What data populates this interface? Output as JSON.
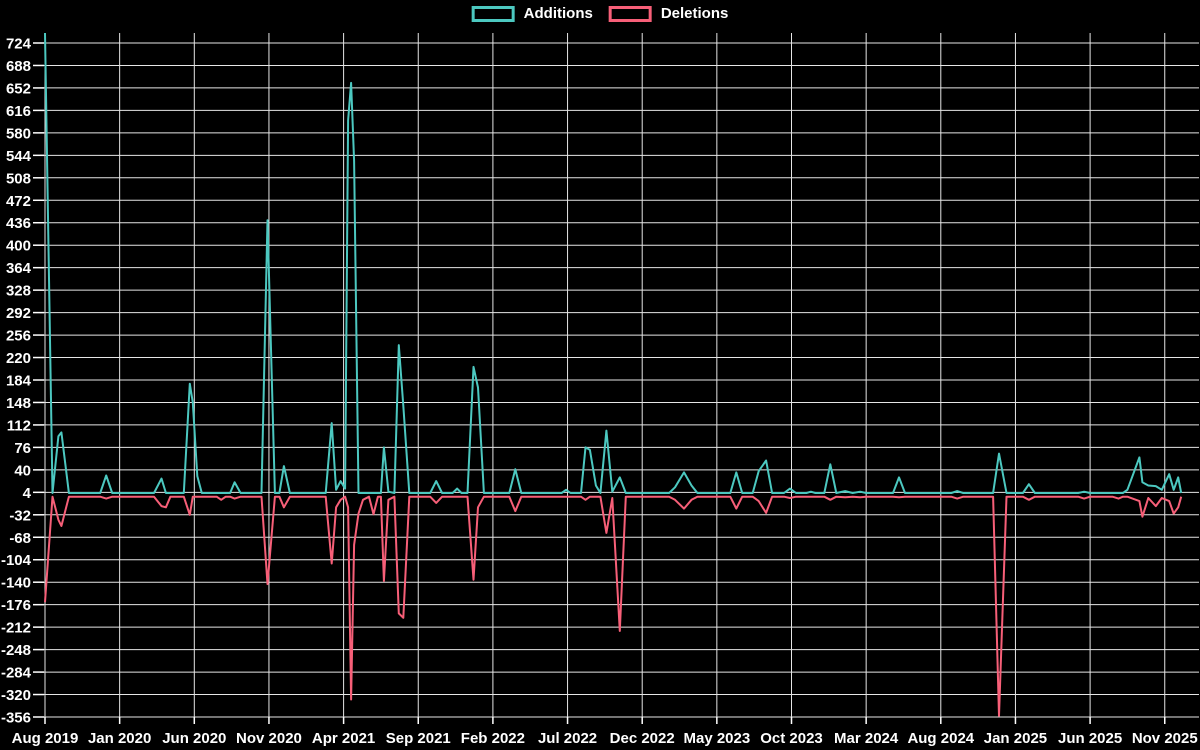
{
  "legend": {
    "additions": "Additions",
    "deletions": "Deletions"
  },
  "colors": {
    "additions": "#4cc8c0",
    "deletions": "#f75f78",
    "grid": "#e6e6e6",
    "text": "#ffffff",
    "background": "#000000"
  },
  "chart_data": {
    "type": "line",
    "title": "",
    "xlabel": "",
    "ylabel": "",
    "legend_position": "top-center",
    "grid": true,
    "background": "#000000",
    "series": [
      {
        "name": "Additions",
        "color": "#4cc8c0",
        "point_key": "additions"
      },
      {
        "name": "Deletions",
        "color": "#f75f78",
        "point_key": "deletions"
      }
    ],
    "x_axis": {
      "unit": "months since Aug 2019 (0 = Aug 2019, 1 = Sep 2019, ...)",
      "ticks": [
        {
          "t": 0,
          "label": "Aug 2019"
        },
        {
          "t": 5,
          "label": "Jan 2020"
        },
        {
          "t": 10,
          "label": "Jun 2020"
        },
        {
          "t": 15,
          "label": "Nov 2020"
        },
        {
          "t": 20,
          "label": "Apr 2021"
        },
        {
          "t": 25,
          "label": "Sep 2021"
        },
        {
          "t": 30,
          "label": "Feb 2022"
        },
        {
          "t": 35,
          "label": "Jul 2022"
        },
        {
          "t": 40,
          "label": "Dec 2022"
        },
        {
          "t": 45,
          "label": "May 2023"
        },
        {
          "t": 50,
          "label": "Oct 2023"
        },
        {
          "t": 55,
          "label": "Mar 2024"
        },
        {
          "t": 60,
          "label": "Aug 2024"
        },
        {
          "t": 65,
          "label": "Jan 2025"
        },
        {
          "t": 70,
          "label": "Jun 2025"
        },
        {
          "t": 75,
          "label": "Nov 2025"
        }
      ]
    },
    "y_axis": {
      "ticks": [
        724,
        688,
        652,
        616,
        580,
        544,
        508,
        472,
        436,
        400,
        364,
        328,
        292,
        256,
        220,
        184,
        148,
        112,
        76,
        40,
        4,
        -32,
        -68,
        -104,
        -140,
        -176,
        -212,
        -248,
        -284,
        -320,
        -356
      ],
      "range": [
        -356,
        740
      ]
    },
    "points_format": [
      "t_months_since_aug_2019",
      "additions",
      "deletions"
    ],
    "points": [
      [
        0,
        740,
        -172
      ],
      [
        0.5,
        3,
        -3
      ],
      [
        0.9,
        94,
        -40
      ],
      [
        1.1,
        100,
        -50
      ],
      [
        1.6,
        3,
        -3
      ],
      [
        3.7,
        3,
        -3
      ],
      [
        4.1,
        31,
        -6
      ],
      [
        4.5,
        3,
        -3
      ],
      [
        7.3,
        3,
        -3
      ],
      [
        7.8,
        26,
        -18
      ],
      [
        8.1,
        3,
        -20
      ],
      [
        8.4,
        3,
        -3
      ],
      [
        9.3,
        3,
        -3
      ],
      [
        9.7,
        178,
        -32
      ],
      [
        9.9,
        148,
        -3
      ],
      [
        10.2,
        30,
        -3
      ],
      [
        10.5,
        3,
        -3
      ],
      [
        11.5,
        3,
        -3
      ],
      [
        11.8,
        3,
        -8
      ],
      [
        12.1,
        3,
        -3
      ],
      [
        12.4,
        3,
        -3
      ],
      [
        12.7,
        20,
        -6
      ],
      [
        13.1,
        3,
        -3
      ],
      [
        14.5,
        3,
        -3
      ],
      [
        14.9,
        440,
        -143
      ],
      [
        15.4,
        3,
        -3
      ],
      [
        15.7,
        3,
        -3
      ],
      [
        16,
        46,
        -20
      ],
      [
        16.4,
        3,
        -3
      ],
      [
        18.8,
        3,
        -3
      ],
      [
        19.2,
        115,
        -110
      ],
      [
        19.5,
        8,
        -20
      ],
      [
        19.8,
        22,
        -8
      ],
      [
        20.1,
        10,
        -3
      ],
      [
        20.3,
        600,
        -20
      ],
      [
        20.5,
        660,
        -328
      ],
      [
        20.7,
        535,
        -80
      ],
      [
        21,
        3,
        -30
      ],
      [
        21.3,
        3,
        -8
      ],
      [
        21.7,
        3,
        -3
      ],
      [
        22,
        3,
        -31
      ],
      [
        22.3,
        3,
        -3
      ],
      [
        22.5,
        3,
        -3
      ],
      [
        22.7,
        76,
        -138
      ],
      [
        23,
        5,
        -8
      ],
      [
        23.4,
        3,
        -3
      ],
      [
        23.7,
        240,
        -190
      ],
      [
        24,
        143,
        -197
      ],
      [
        24.4,
        3,
        -3
      ],
      [
        25.8,
        3,
        -3
      ],
      [
        26.2,
        22,
        -13
      ],
      [
        26.6,
        3,
        -3
      ],
      [
        27.3,
        3,
        -3
      ],
      [
        27.6,
        10,
        -3
      ],
      [
        27.9,
        3,
        -3
      ],
      [
        28.3,
        3,
        -3
      ],
      [
        28.7,
        205,
        -136
      ],
      [
        29,
        172,
        -20
      ],
      [
        29.4,
        3,
        -3
      ],
      [
        31.1,
        3,
        -3
      ],
      [
        31.5,
        41,
        -26
      ],
      [
        31.9,
        3,
        -3
      ],
      [
        34.6,
        3,
        -3
      ],
      [
        34.9,
        8,
        -3
      ],
      [
        35.2,
        3,
        -3
      ],
      [
        35.9,
        3,
        -3
      ],
      [
        36.2,
        76,
        -8
      ],
      [
        36.5,
        72,
        -3
      ],
      [
        36.9,
        15,
        -3
      ],
      [
        37.2,
        3,
        -3
      ],
      [
        37.6,
        103,
        -61
      ],
      [
        38,
        5,
        -5
      ],
      [
        38.5,
        28,
        -218
      ],
      [
        38.9,
        3,
        -3
      ],
      [
        41.8,
        3,
        -3
      ],
      [
        42.2,
        12,
        -8
      ],
      [
        42.8,
        36,
        -22
      ],
      [
        43.3,
        15,
        -8
      ],
      [
        43.7,
        3,
        -3
      ],
      [
        45.9,
        3,
        -3
      ],
      [
        46.3,
        36,
        -22
      ],
      [
        46.7,
        3,
        -3
      ],
      [
        47.4,
        3,
        -3
      ],
      [
        47.8,
        38,
        -10
      ],
      [
        48.3,
        55,
        -29
      ],
      [
        48.7,
        3,
        -3
      ],
      [
        49.5,
        3,
        -3
      ],
      [
        49.9,
        10,
        -5
      ],
      [
        50.3,
        3,
        -3
      ],
      [
        51,
        3,
        -3
      ],
      [
        51.3,
        5,
        -3
      ],
      [
        51.6,
        3,
        -3
      ],
      [
        52.2,
        3,
        -3
      ],
      [
        52.6,
        49,
        -8
      ],
      [
        53,
        3,
        -3
      ],
      [
        53.6,
        6,
        -4
      ],
      [
        54.1,
        3,
        -3
      ],
      [
        54.6,
        5,
        -4
      ],
      [
        55,
        3,
        -3
      ],
      [
        56.8,
        3,
        -3
      ],
      [
        57.2,
        28,
        -4
      ],
      [
        57.6,
        3,
        -3
      ],
      [
        60.7,
        3,
        -3
      ],
      [
        61.1,
        6,
        -6
      ],
      [
        61.5,
        3,
        -3
      ],
      [
        63.5,
        3,
        -3
      ],
      [
        63.9,
        66,
        -354
      ],
      [
        64.4,
        3,
        -3
      ],
      [
        65.5,
        3,
        -3
      ],
      [
        65.9,
        17,
        -8
      ],
      [
        66.3,
        3,
        -3
      ],
      [
        69.2,
        3,
        -3
      ],
      [
        69.6,
        5,
        -6
      ],
      [
        70,
        3,
        -3
      ],
      [
        71.5,
        3,
        -3
      ],
      [
        71.9,
        3,
        -6
      ],
      [
        72.2,
        3,
        -3
      ],
      [
        72.5,
        8,
        -3
      ],
      [
        73.3,
        60,
        -10
      ],
      [
        73.5,
        20,
        -35
      ],
      [
        73.9,
        15,
        -5
      ],
      [
        74.4,
        14,
        -18
      ],
      [
        74.8,
        8,
        -5
      ],
      [
        75.3,
        33,
        -10
      ],
      [
        75.6,
        8,
        -30
      ],
      [
        75.9,
        28,
        -20
      ],
      [
        76.1,
        3,
        -3
      ]
    ]
  }
}
